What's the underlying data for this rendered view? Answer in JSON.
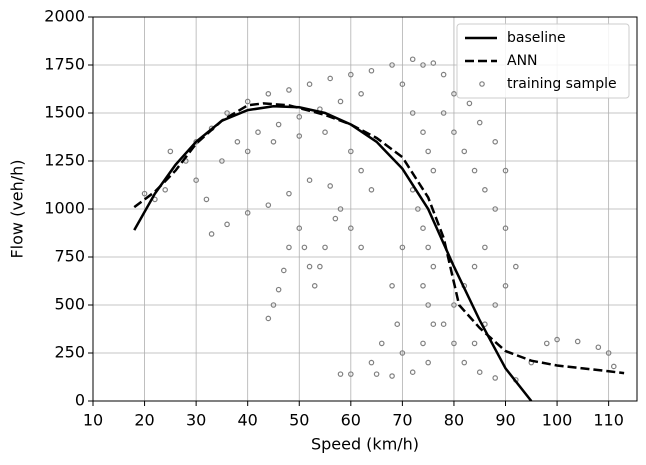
{
  "chart_data": {
    "type": "line",
    "xlabel": "Speed (km/h)",
    "ylabel": "Flow (veh/h)",
    "xlim": [
      10,
      115.5
    ],
    "ylim": [
      0,
      2000
    ],
    "xticks": [
      10,
      20,
      30,
      40,
      50,
      60,
      70,
      80,
      90,
      100,
      110
    ],
    "yticks": [
      0,
      250,
      500,
      750,
      1000,
      1250,
      1500,
      1750,
      2000
    ],
    "grid": true,
    "legend": "upper right",
    "series": [
      {
        "name": "baseline",
        "color": "#000000",
        "style": "solid",
        "x": [
          18,
          22,
          26,
          30,
          35,
          40,
          45,
          50,
          55,
          60,
          65,
          70,
          75,
          80,
          85,
          90,
          95
        ],
        "values": [
          890,
          1080,
          1230,
          1350,
          1460,
          1515,
          1535,
          1530,
          1500,
          1440,
          1350,
          1210,
          1000,
          700,
          420,
          170,
          0
        ]
      },
      {
        "name": "ANN",
        "color": "#000000",
        "style": "dashed",
        "x": [
          18,
          22,
          26,
          30,
          35,
          40,
          43,
          48,
          55,
          60,
          65,
          70,
          75,
          78,
          81,
          85,
          90,
          95,
          100,
          105,
          110,
          113
        ],
        "values": [
          1010,
          1090,
          1200,
          1340,
          1460,
          1540,
          1550,
          1540,
          1490,
          1440,
          1370,
          1270,
          1060,
          850,
          500,
          380,
          260,
          210,
          185,
          170,
          155,
          145
        ]
      },
      {
        "name": "training sample",
        "color": "#808080",
        "style": "markers",
        "x": [
          30,
          33,
          36,
          40,
          44,
          48,
          52,
          56,
          60,
          64,
          68,
          72,
          76,
          62,
          58,
          54,
          50,
          46,
          42,
          38,
          35,
          40,
          45,
          50,
          55,
          60,
          62,
          64,
          33,
          36,
          40,
          44,
          48,
          52,
          56,
          58,
          60,
          62,
          32,
          30,
          28,
          25,
          20,
          22,
          24,
          44,
          45,
          46,
          47,
          48,
          50,
          51,
          52,
          53,
          54,
          55,
          57,
          70,
          72,
          74,
          75,
          76,
          72,
          73,
          74,
          75,
          76,
          74,
          75,
          76,
          74,
          75,
          72,
          68,
          65,
          60,
          58,
          78,
          80,
          82,
          84,
          86,
          88,
          90,
          86,
          84,
          82,
          80,
          78,
          80,
          82,
          85,
          88,
          92,
          95,
          98,
          100,
          104,
          108,
          110,
          111,
          92,
          90,
          88,
          86,
          84,
          70,
          68,
          69,
          70,
          66,
          64,
          90,
          88,
          85,
          83,
          80,
          78,
          74
        ],
        "values": [
          1350,
          1420,
          1500,
          1560,
          1600,
          1620,
          1650,
          1680,
          1700,
          1720,
          1750,
          1780,
          1760,
          1600,
          1560,
          1520,
          1480,
          1440,
          1400,
          1350,
          1250,
          1300,
          1350,
          1380,
          1400,
          1300,
          1200,
          1100,
          870,
          920,
          980,
          1020,
          1080,
          1150,
          1120,
          1000,
          900,
          800,
          1050,
          1150,
          1250,
          1300,
          1080,
          1050,
          1100,
          430,
          500,
          580,
          680,
          800,
          900,
          800,
          700,
          600,
          700,
          800,
          950,
          1650,
          1500,
          1400,
          1300,
          1200,
          1100,
          1000,
          900,
          800,
          700,
          600,
          500,
          400,
          300,
          200,
          150,
          130,
          140,
          140,
          140,
          1500,
          1400,
          1300,
          1200,
          1100,
          1000,
          900,
          800,
          700,
          600,
          500,
          400,
          300,
          200,
          150,
          120,
          110,
          200,
          300,
          320,
          310,
          280,
          250,
          180,
          700,
          600,
          500,
          400,
          300,
          800,
          600,
          400,
          250,
          300,
          200,
          1200,
          1350,
          1450,
          1550,
          1600,
          1700,
          1750
        ]
      }
    ]
  }
}
